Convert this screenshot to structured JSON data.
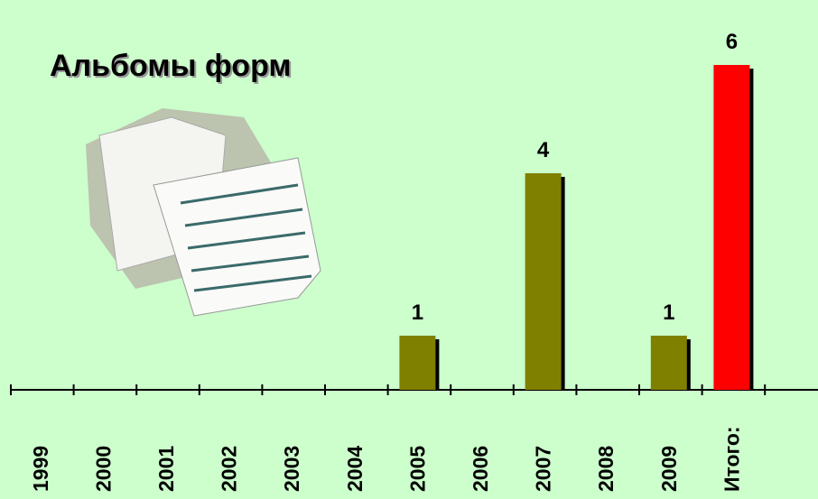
{
  "chart_data": {
    "type": "bar",
    "title": "Альбомы форм",
    "categories": [
      "1999",
      "2000",
      "2001",
      "2002",
      "2003",
      "2004",
      "2005",
      "2006",
      "2007",
      "2008",
      "2009",
      "Итого:"
    ],
    "values": [
      null,
      null,
      null,
      null,
      null,
      null,
      1,
      null,
      4,
      null,
      1,
      6
    ],
    "colors": [
      "#808000",
      "#808000",
      "#808000",
      "#808000",
      "#808000",
      "#808000",
      "#808000",
      "#808000",
      "#808000",
      "#808000",
      "#808000",
      "#ff0000"
    ]
  }
}
